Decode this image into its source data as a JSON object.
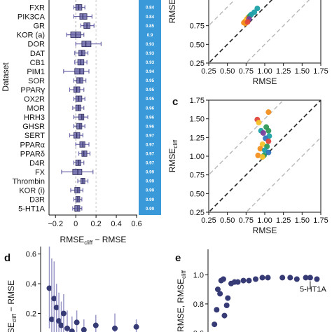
{
  "panel_labels": {
    "c": "c",
    "d": "d",
    "e": "e"
  },
  "colors": {
    "box": "#6b67a8",
    "box_dark": "#2c2a5a",
    "point_navy": "#363a75",
    "bar": "#3a9ad9",
    "orange": "#f28f1c",
    "yellow": "#f6c12a",
    "green": "#2f9a57",
    "teal": "#1ea0a8",
    "purple": "#7a3f9a",
    "red": "#e0473b",
    "blue": "#2f74c0",
    "dashed_dark": "#222222",
    "dashed_light": "#b8b8b8"
  },
  "chart_data": [
    {
      "id": "a",
      "type": "box",
      "ylabel": "Dataset",
      "xlabel": "RMSE_cliff − RMSE",
      "xlabel_main": "RMSE",
      "xlabel_sub": "cliff",
      "xlabel_tail": " − RMSE",
      "xlim": [
        -0.25,
        0.6
      ],
      "xticks": [
        "−0.2",
        "0",
        "0.2",
        "0.4",
        "0.6"
      ],
      "xtick_values": [
        -0.2,
        0,
        0.2,
        0.4,
        0.6
      ],
      "categories": [
        "FXR",
        "PIK3CA",
        "GR",
        "KOR (a)",
        "DOR",
        "DAT",
        "CB1",
        "PIM1",
        "SOR",
        "PPARγ",
        "OX2R",
        "MOR",
        "HRH3",
        "GHSR",
        "SERT",
        "PPARα",
        "PPARδ",
        "D4R",
        "FX",
        "Thrombin",
        "KOR (i)",
        "D3R",
        "5-HT1A"
      ],
      "boxes": [
        {
          "whislo": -0.02,
          "q1": 0.0,
          "med": 0.03,
          "q3": 0.06,
          "whishi": 0.09
        },
        {
          "whislo": -0.02,
          "q1": 0.04,
          "med": 0.07,
          "q3": 0.11,
          "whishi": 0.16
        },
        {
          "whislo": 0.05,
          "q1": 0.08,
          "med": 0.11,
          "q3": 0.14,
          "whishi": 0.18
        },
        {
          "whislo": -0.09,
          "q1": -0.05,
          "med": 0.0,
          "q3": 0.05,
          "whishi": 0.08
        },
        {
          "whislo": 0.0,
          "q1": 0.06,
          "med": 0.1,
          "q3": 0.15,
          "whishi": 0.25
        },
        {
          "whislo": -0.01,
          "q1": 0.03,
          "med": 0.06,
          "q3": 0.09,
          "whishi": 0.12
        },
        {
          "whislo": -0.01,
          "q1": 0.02,
          "med": 0.05,
          "q3": 0.08,
          "whishi": 0.11
        },
        {
          "whislo": -0.12,
          "q1": -0.01,
          "med": 0.04,
          "q3": 0.08,
          "whishi": 0.13
        },
        {
          "whislo": -0.02,
          "q1": 0.01,
          "med": 0.04,
          "q3": 0.07,
          "whishi": 0.1
        },
        {
          "whislo": -0.06,
          "q1": -0.02,
          "med": 0.01,
          "q3": 0.04,
          "whishi": 0.08
        },
        {
          "whislo": -0.02,
          "q1": 0.0,
          "med": 0.03,
          "q3": 0.06,
          "whishi": 0.09
        },
        {
          "whislo": -0.03,
          "q1": 0.0,
          "med": 0.03,
          "q3": 0.05,
          "whishi": 0.08
        },
        {
          "whislo": -0.02,
          "q1": 0.03,
          "med": 0.06,
          "q3": 0.08,
          "whishi": 0.12
        },
        {
          "whislo": -0.02,
          "q1": 0.01,
          "med": 0.04,
          "q3": 0.06,
          "whishi": 0.09
        },
        {
          "whislo": -0.06,
          "q1": -0.02,
          "med": 0.01,
          "q3": 0.04,
          "whishi": 0.07
        },
        {
          "whislo": 0.0,
          "q1": 0.04,
          "med": 0.07,
          "q3": 0.09,
          "whishi": 0.13
        },
        {
          "whislo": 0.03,
          "q1": 0.06,
          "med": 0.08,
          "q3": 0.11,
          "whishi": 0.14
        },
        {
          "whislo": -0.02,
          "q1": 0.0,
          "med": 0.03,
          "q3": 0.05,
          "whishi": 0.08
        },
        {
          "whislo": -0.14,
          "q1": -0.03,
          "med": 0.02,
          "q3": 0.06,
          "whishi": 0.17
        },
        {
          "whislo": 0.02,
          "q1": 0.05,
          "med": 0.07,
          "q3": 0.09,
          "whishi": 0.12
        },
        {
          "whislo": -0.05,
          "q1": -0.01,
          "med": 0.02,
          "q3": 0.04,
          "whishi": 0.07
        },
        {
          "whislo": -0.02,
          "q1": 0.0,
          "med": 0.02,
          "q3": 0.04,
          "whishi": 0.06
        },
        {
          "whislo": -0.03,
          "q1": -0.01,
          "med": 0.02,
          "q3": 0.04,
          "whishi": 0.06
        }
      ],
      "bar_values": [
        "0.84",
        "0.84",
        "0.85",
        "0.9",
        "0.93",
        "0.93",
        "0.93",
        "0.94",
        "0.95",
        "0.95",
        "0.95",
        "0.96",
        "0.96",
        "0.96",
        "0.97",
        "0.97",
        "0.97",
        "0.97",
        "0.99",
        "0.99",
        "0.99",
        "0.99",
        "0.99"
      ]
    },
    {
      "id": "b",
      "type": "scatter",
      "xlabel": "RMSE",
      "ylabel": "RMSE",
      "ylabel_sub": "cliff",
      "xlim": [
        0.25,
        1.75
      ],
      "ylim": [
        0.25,
        1.75
      ],
      "xticks": [
        "0.25",
        "0.50",
        "0.75",
        "1.00",
        "1.25",
        "1.50",
        "1.75"
      ],
      "yticks": [
        "0.25",
        "0.50",
        "0.75"
      ],
      "points": [
        {
          "x": 0.72,
          "y": 0.79,
          "c": "orange"
        },
        {
          "x": 0.74,
          "y": 0.81,
          "c": "orange"
        },
        {
          "x": 0.76,
          "y": 0.84,
          "c": "yellow"
        },
        {
          "x": 0.78,
          "y": 0.86,
          "c": "orange"
        },
        {
          "x": 0.8,
          "y": 0.88,
          "c": "green"
        },
        {
          "x": 0.82,
          "y": 0.9,
          "c": "teal"
        },
        {
          "x": 0.79,
          "y": 0.84,
          "c": "purple"
        },
        {
          "x": 0.86,
          "y": 0.93,
          "c": "teal"
        },
        {
          "x": 0.9,
          "y": 0.98,
          "c": "teal"
        },
        {
          "x": 0.74,
          "y": 0.78,
          "c": "orange"
        },
        {
          "x": 0.77,
          "y": 0.8,
          "c": "red"
        }
      ]
    },
    {
      "id": "c",
      "type": "scatter",
      "xlabel": "RMSE",
      "ylabel": "RMSE",
      "ylabel_sub": "cliff",
      "xlim": [
        0.25,
        1.75
      ],
      "ylim": [
        0.25,
        1.75
      ],
      "xticks": [
        "0.25",
        "0.50",
        "0.75",
        "1.00",
        "1.25",
        "1.50",
        "1.75"
      ],
      "yticks": [
        "0.25",
        "0.50",
        "0.75",
        "1.00",
        "1.25",
        "1.50",
        "1.75"
      ],
      "points": [
        {
          "x": 1.05,
          "y": 1.59,
          "c": "orange"
        },
        {
          "x": 0.9,
          "y": 1.49,
          "c": "red"
        },
        {
          "x": 0.92,
          "y": 1.45,
          "c": "yellow"
        },
        {
          "x": 1.02,
          "y": 1.39,
          "c": "green"
        },
        {
          "x": 0.95,
          "y": 1.34,
          "c": "teal"
        },
        {
          "x": 1.05,
          "y": 1.34,
          "c": "green"
        },
        {
          "x": 0.98,
          "y": 1.31,
          "c": "purple"
        },
        {
          "x": 1.06,
          "y": 1.27,
          "c": "teal"
        },
        {
          "x": 1.01,
          "y": 1.24,
          "c": "blue"
        },
        {
          "x": 1.05,
          "y": 1.2,
          "c": "red"
        },
        {
          "x": 0.97,
          "y": 1.16,
          "c": "yellow"
        },
        {
          "x": 1.03,
          "y": 1.13,
          "c": "green"
        },
        {
          "x": 0.94,
          "y": 1.1,
          "c": "orange"
        },
        {
          "x": 1.0,
          "y": 1.08,
          "c": "teal"
        },
        {
          "x": 1.05,
          "y": 1.05,
          "c": "blue"
        },
        {
          "x": 0.91,
          "y": 1.01,
          "c": "orange"
        },
        {
          "x": 0.99,
          "y": 1.01,
          "c": "green"
        },
        {
          "x": 0.97,
          "y": 0.99,
          "c": "yellow"
        }
      ]
    },
    {
      "id": "d",
      "type": "scatter",
      "ylabel": "SE_cliff − RMSE",
      "ylabel_main": "SE",
      "ylabel_sub": "cliff",
      "ylabel_tail": " − RMSE",
      "ylim": [
        0.0,
        0.65
      ],
      "yticks": [
        "0.2",
        "0.4",
        "0.6"
      ],
      "ytick_values": [
        0.2,
        0.4,
        0.6
      ],
      "points": [
        {
          "x": 0.05,
          "y": 0.37,
          "lo": 0.1,
          "hi": 0.65
        },
        {
          "x": 0.07,
          "y": 0.16,
          "lo": 0.0,
          "hi": 0.57
        },
        {
          "x": 0.09,
          "y": 0.3,
          "lo": 0.05,
          "hi": 0.55
        },
        {
          "x": 0.11,
          "y": 0.24,
          "lo": 0.05,
          "hi": 0.4
        },
        {
          "x": 0.13,
          "y": 0.15,
          "lo": 0.0,
          "hi": 0.34
        },
        {
          "x": 0.15,
          "y": 0.12,
          "lo": 0.0,
          "hi": 0.28
        },
        {
          "x": 0.17,
          "y": 0.2,
          "lo": 0.05,
          "hi": 0.33
        },
        {
          "x": 0.2,
          "y": 0.1,
          "lo": 0.0,
          "hi": 0.22
        },
        {
          "x": 0.24,
          "y": 0.08,
          "lo": 0.0,
          "hi": 0.18
        },
        {
          "x": 0.28,
          "y": 0.14,
          "lo": 0.02,
          "hi": 0.22
        },
        {
          "x": 0.34,
          "y": 0.09,
          "lo": 0.0,
          "hi": 0.16
        },
        {
          "x": 0.44,
          "y": 0.12,
          "lo": 0.02,
          "hi": 0.19
        },
        {
          "x": 0.6,
          "y": 0.1,
          "lo": 0.0,
          "hi": 0.2
        },
        {
          "x": 0.78,
          "y": 0.11,
          "lo": 0.0,
          "hi": 0.16
        }
      ]
    },
    {
      "id": "e",
      "type": "scatter",
      "ylabel": "RMSE, RMSE_cliff",
      "ylabel_main": "RMSE, RMSE",
      "ylabel_sub": "cliff",
      "ylim": [
        0.55,
        1.03
      ],
      "yticks": [
        "0.6",
        "0.8",
        "1.0"
      ],
      "ytick_values": [
        0.6,
        0.8,
        1.0
      ],
      "annotation": "5-HT1A",
      "points": [
        {
          "x": 0.02,
          "y": 0.66
        },
        {
          "x": 0.04,
          "y": 0.76
        },
        {
          "x": 0.05,
          "y": 0.9
        },
        {
          "x": 0.07,
          "y": 0.87
        },
        {
          "x": 0.08,
          "y": 0.96
        },
        {
          "x": 0.1,
          "y": 0.97
        },
        {
          "x": 0.11,
          "y": 0.72
        },
        {
          "x": 0.13,
          "y": 0.79
        },
        {
          "x": 0.14,
          "y": 0.84
        },
        {
          "x": 0.17,
          "y": 0.94
        },
        {
          "x": 0.2,
          "y": 0.95
        },
        {
          "x": 0.23,
          "y": 0.95
        },
        {
          "x": 0.28,
          "y": 0.96
        },
        {
          "x": 0.33,
          "y": 0.96
        },
        {
          "x": 0.39,
          "y": 0.97
        },
        {
          "x": 0.45,
          "y": 0.98
        },
        {
          "x": 0.5,
          "y": 0.98
        },
        {
          "x": 0.63,
          "y": 0.98
        },
        {
          "x": 0.7,
          "y": 0.98
        },
        {
          "x": 0.76,
          "y": 0.97
        },
        {
          "x": 0.84,
          "y": 0.98
        },
        {
          "x": 0.88,
          "y": 0.98
        },
        {
          "x": 0.94,
          "y": 0.97
        }
      ],
      "highlight_index": 21
    }
  ]
}
